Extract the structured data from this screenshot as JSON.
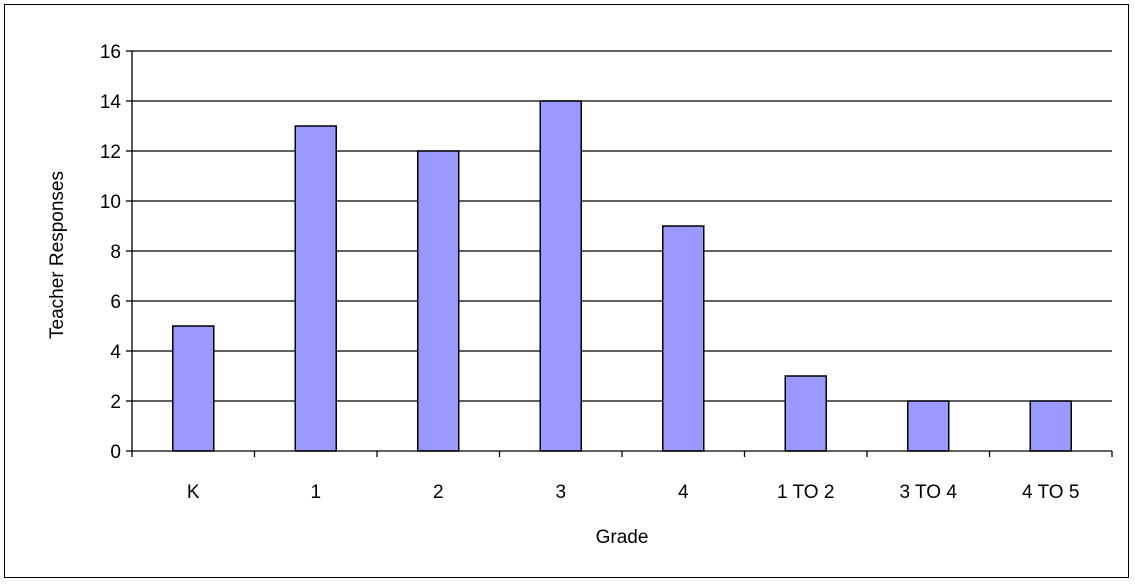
{
  "chart_data": {
    "type": "bar",
    "categories": [
      "K",
      "1",
      "2",
      "3",
      "4",
      "1 TO 2",
      "3 TO 4",
      "4 TO 5"
    ],
    "values": [
      5,
      13,
      12,
      14,
      9,
      3,
      2,
      2
    ],
    "xlabel": "Grade",
    "ylabel": "Teacher Responses",
    "ylim": [
      0,
      16
    ],
    "yticks": [
      0,
      2,
      4,
      6,
      8,
      10,
      12,
      14,
      16
    ],
    "grid": true,
    "legend": "none",
    "bar_color": "#9999ff",
    "bar_stroke": "#000000"
  }
}
